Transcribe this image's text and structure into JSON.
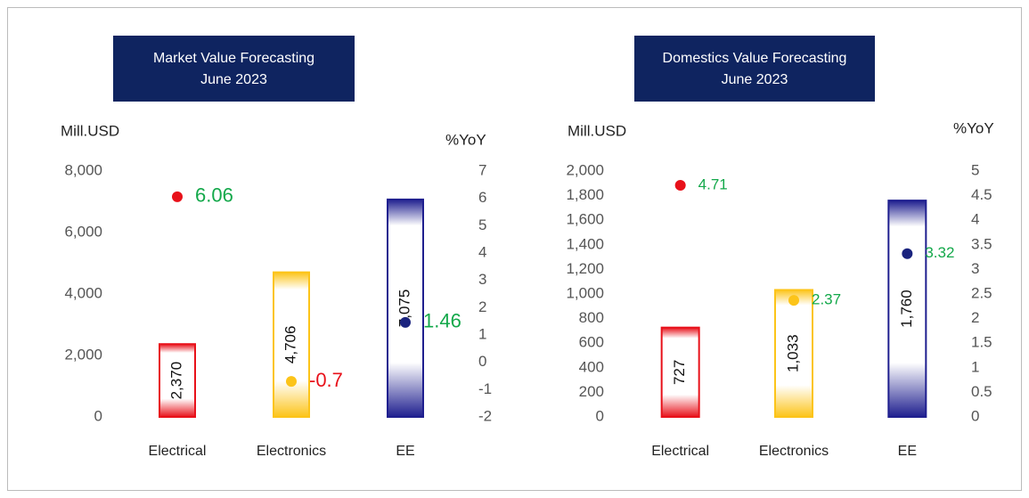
{
  "chart_data": [
    {
      "type": "bar",
      "title": "Market Value Forecasting",
      "subtitle": "June 2023",
      "y_label": "Mill.USD",
      "y2_label": "%YoY",
      "categories": [
        "Electrical",
        "Electronics",
        "EE"
      ],
      "series": [
        {
          "name": "Mill.USD",
          "colors": [
            "#e8111a",
            "#fcc419",
            "#1f1f8f"
          ],
          "values": [
            2370,
            4706,
            7075
          ],
          "value_labels": [
            "2,370",
            "4,706",
            "7,075"
          ]
        },
        {
          "name": "%YoY",
          "axis": "y2",
          "colors": [
            "#e8111a",
            "#fcc419",
            "#1a237e"
          ],
          "label_colors": [
            "#13a84a",
            "#e8111a",
            "#13a84a"
          ],
          "values": [
            6.06,
            -0.7,
            1.46
          ]
        }
      ],
      "ylim": [
        0,
        8000
      ],
      "yticks": [
        0,
        {
          "value": 2000,
          "label": "2,000"
        },
        {
          "value": 4000,
          "label": "4,000"
        },
        {
          "value": 6000,
          "label": "6,000"
        },
        {
          "value": 8000,
          "label": "8,000"
        }
      ],
      "y2lim": [
        -2,
        7
      ],
      "y2ticks": [
        -2,
        -1,
        0,
        1,
        2,
        3,
        4,
        5,
        6,
        7
      ]
    },
    {
      "type": "bar",
      "title": "Domestics Value Forecasting",
      "subtitle": "June 2023",
      "y_label": "Mill.USD",
      "y2_label": "%YoY",
      "categories": [
        "Electrical",
        "Electronics",
        "EE"
      ],
      "series": [
        {
          "name": "Mill.USD",
          "colors": [
            "#e8111a",
            "#fcc419",
            "#1f1f8f"
          ],
          "values": [
            727,
            1033,
            1760
          ],
          "value_labels": [
            "727",
            "1,033",
            "1,760"
          ]
        },
        {
          "name": "%YoY",
          "axis": "y2",
          "colors": [
            "#e8111a",
            "#fcc419",
            "#1a237e"
          ],
          "label_colors": [
            "#13a84a",
            "#13a84a",
            "#13a84a"
          ],
          "values": [
            4.71,
            2.37,
            3.32
          ]
        }
      ],
      "ylim": [
        0,
        2000
      ],
      "yticks": [
        0,
        200,
        400,
        600,
        800,
        {
          "value": 1000,
          "label": "1,000"
        },
        {
          "value": 1200,
          "label": "1,200"
        },
        {
          "value": 1400,
          "label": "1,400"
        },
        {
          "value": 1600,
          "label": "1,600"
        },
        {
          "value": 1800,
          "label": "1,800"
        },
        {
          "value": 2000,
          "label": "2,000"
        }
      ],
      "y2lim": [
        0,
        5
      ],
      "y2ticks": [
        0,
        0.5,
        1,
        1.5,
        2,
        2.5,
        3,
        3.5,
        4,
        4.5,
        5
      ]
    }
  ]
}
